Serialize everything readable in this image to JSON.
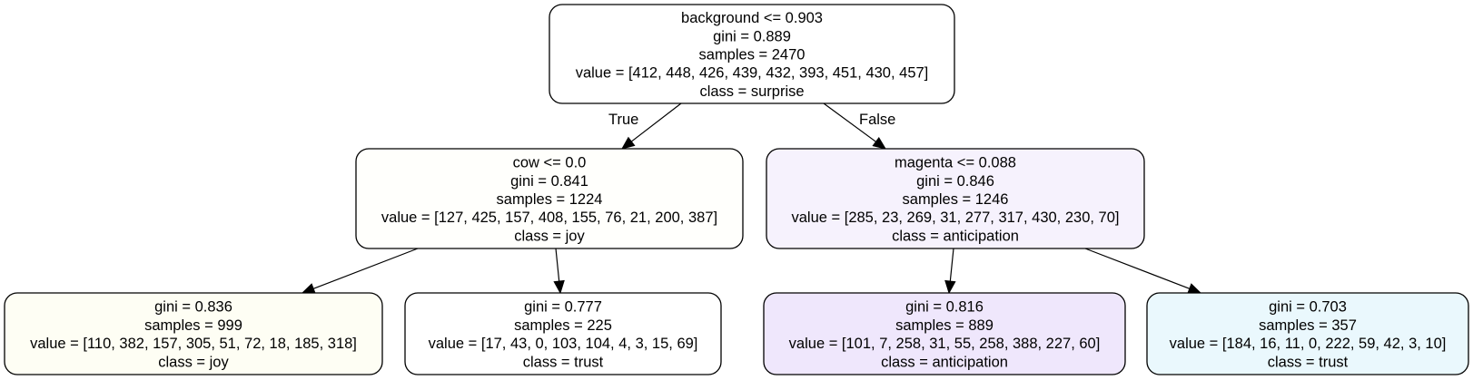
{
  "nodes": [
    {
      "id": "root",
      "lines": [
        "background <= 0.903",
        "gini = 0.889",
        "samples = 2470",
        "value = [412, 448, 426, 439, 432, 393, 451, 430, 457]",
        "class = surprise"
      ],
      "fill": "#ffffff"
    },
    {
      "id": "left",
      "lines": [
        "cow <= 0.0",
        "gini = 0.841",
        "samples = 1224",
        "value = [127, 425, 157, 408, 155, 76, 21, 200, 387]",
        "class = joy"
      ],
      "fill": "#fffffc"
    },
    {
      "id": "right",
      "lines": [
        "magenta <= 0.088",
        "gini = 0.846",
        "samples = 1246",
        "value = [285, 23, 269, 31, 277, 317, 430, 230, 70]",
        "class = anticipation"
      ],
      "fill": "#f6f2fd"
    },
    {
      "id": "ll",
      "lines": [
        "gini = 0.836",
        "samples = 999",
        "value = [110, 382, 157, 305, 51, 72, 18, 185, 318]",
        "class = joy"
      ],
      "fill": "#fefef4"
    },
    {
      "id": "lr",
      "lines": [
        "gini = 0.777",
        "samples = 225",
        "value = [17, 43, 0, 103, 104, 4, 3, 15, 69]",
        "class = trust"
      ],
      "fill": "#ffffff"
    },
    {
      "id": "rl",
      "lines": [
        "gini = 0.816",
        "samples = 889",
        "value = [101, 7, 258, 31, 55, 258, 388, 227, 60]",
        "class = anticipation"
      ],
      "fill": "#efe7fc"
    },
    {
      "id": "rr",
      "lines": [
        "gini = 0.703",
        "samples = 357",
        "value = [184, 16, 11, 0, 222, 59, 42, 3, 10]",
        "class = trust"
      ],
      "fill": "#eaf8fd"
    }
  ],
  "edges": [
    {
      "from": "root",
      "to": "left",
      "label": "True"
    },
    {
      "from": "root",
      "to": "right",
      "label": "False"
    },
    {
      "from": "left",
      "to": "ll",
      "label": ""
    },
    {
      "from": "left",
      "to": "lr",
      "label": ""
    },
    {
      "from": "right",
      "to": "rl",
      "label": ""
    },
    {
      "from": "right",
      "to": "rr",
      "label": ""
    }
  ]
}
